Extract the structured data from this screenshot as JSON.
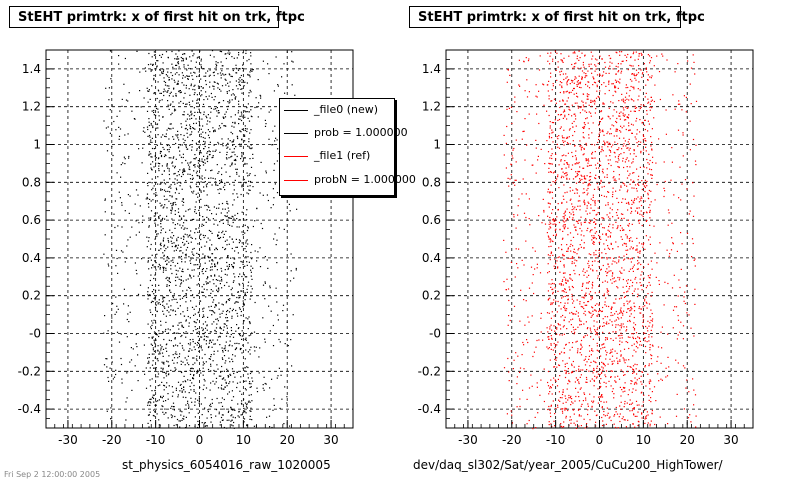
{
  "chart_data": [
    {
      "type": "scatter",
      "title": "StEHT primtrk: x of first hit on trk, ftpc",
      "xlabel": "st_physics_6054016_raw_1020005",
      "ylabel": "",
      "xlim": [
        -35,
        35
      ],
      "ylim": [
        -0.5,
        1.5
      ],
      "x_ticks": [
        -30,
        -20,
        -10,
        0,
        10,
        20,
        30
      ],
      "x_tick_labels": [
        "-30",
        "-20",
        "-10",
        "0",
        "10",
        "20",
        "30"
      ],
      "y_ticks": [
        -0.4,
        -0.2,
        0,
        0.2,
        0.4,
        0.6,
        0.8,
        1,
        1.2,
        1.4
      ],
      "y_tick_labels": [
        "-0.4",
        "-0.2",
        "-0",
        "0.2",
        "0.4",
        "0.6",
        "0.8",
        "1",
        "1.2",
        "1.4"
      ],
      "grid": true,
      "series": [
        {
          "name": "_file0 (new)",
          "color": "#000000",
          "distribution": {
            "x_min": -22,
            "x_max": 22,
            "dense_x": [
              -12,
              12
            ],
            "points": 2800
          }
        }
      ],
      "legend": {
        "position": "top-right",
        "entries": [
          {
            "label": "_file0 (new)",
            "color": "#000000"
          },
          {
            "label": "prob = 1.000000",
            "color": "#000000"
          },
          {
            "label": "_file1 (ref)",
            "color": "#ff0000"
          },
          {
            "label": "probN = 1.000000",
            "color": "#ff0000"
          }
        ]
      }
    },
    {
      "type": "scatter",
      "title": "StEHT primtrk: x of first hit on trk, ftpc",
      "xlabel": "dev/daq_sl302/Sat/year_2005/CuCu200_HighTower/",
      "ylabel": "",
      "xlim": [
        -35,
        35
      ],
      "ylim": [
        -0.5,
        1.5
      ],
      "x_ticks": [
        -30,
        -20,
        -10,
        0,
        10,
        20,
        30
      ],
      "x_tick_labels": [
        "-30",
        "-20",
        "-10",
        "0",
        "10",
        "20",
        "30"
      ],
      "y_ticks": [
        -0.4,
        -0.2,
        0,
        0.2,
        0.4,
        0.6,
        0.8,
        1,
        1.2,
        1.4
      ],
      "y_tick_labels": [
        "-0.4",
        "-0.2",
        "-0",
        "0.2",
        "0.4",
        "0.6",
        "0.8",
        "1",
        "1.2",
        "1.4"
      ],
      "grid": true,
      "series": [
        {
          "name": "_file1 (ref)",
          "color": "#ff0000",
          "distribution": {
            "x_min": -22,
            "x_max": 22,
            "dense_x": [
              -12,
              12
            ],
            "points": 2800
          }
        }
      ]
    }
  ],
  "footer": "Fri Sep 2 12:00:00 2005"
}
